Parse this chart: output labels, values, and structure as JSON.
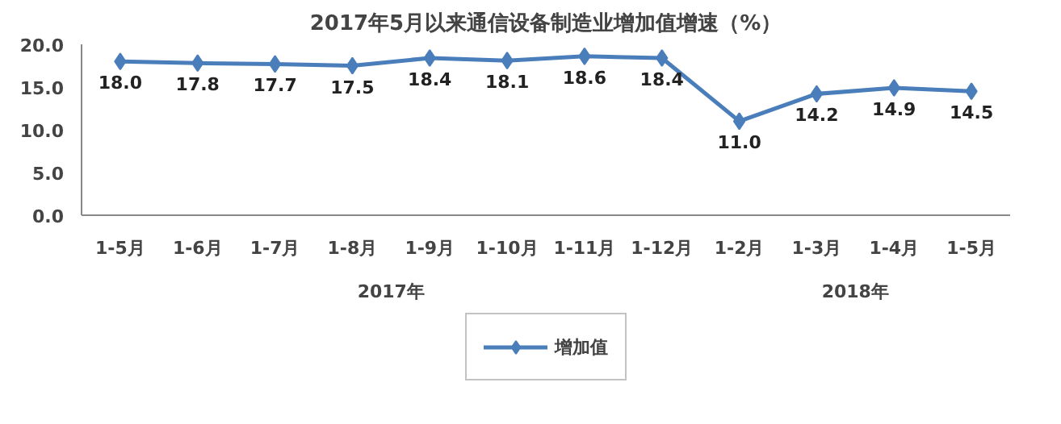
{
  "chart_data": {
    "type": "line",
    "title": "2017年5月以来通信设备制造业增加值增速（%）",
    "categories": [
      "1-5月",
      "1-6月",
      "1-7月",
      "1-8月",
      "1-9月",
      "1-10月",
      "1-11月",
      "1-12月",
      "1-2月",
      "1-3月",
      "1-4月",
      "1-5月"
    ],
    "series": [
      {
        "name": "增加值",
        "color": "#4a7ebb",
        "values": [
          18.0,
          17.8,
          17.7,
          17.5,
          18.4,
          18.1,
          18.6,
          18.4,
          11.0,
          14.2,
          14.9,
          14.5
        ],
        "value_labels": [
          "18.0",
          "17.8",
          "17.7",
          "17.5",
          "18.4",
          "18.1",
          "18.6",
          "18.4",
          "11.0",
          "14.2",
          "14.9",
          "14.5"
        ]
      }
    ],
    "ylim": [
      0,
      20
    ],
    "yticks": [
      {
        "value": 0,
        "label": "0.0"
      },
      {
        "value": 5,
        "label": "5.0"
      },
      {
        "value": 10,
        "label": "10.0"
      },
      {
        "value": 15,
        "label": "15.0"
      },
      {
        "value": 20,
        "label": "20.0"
      }
    ],
    "annotations": [
      "2017年",
      "2018年"
    ],
    "marker": "diamond",
    "legend": "bottom"
  }
}
